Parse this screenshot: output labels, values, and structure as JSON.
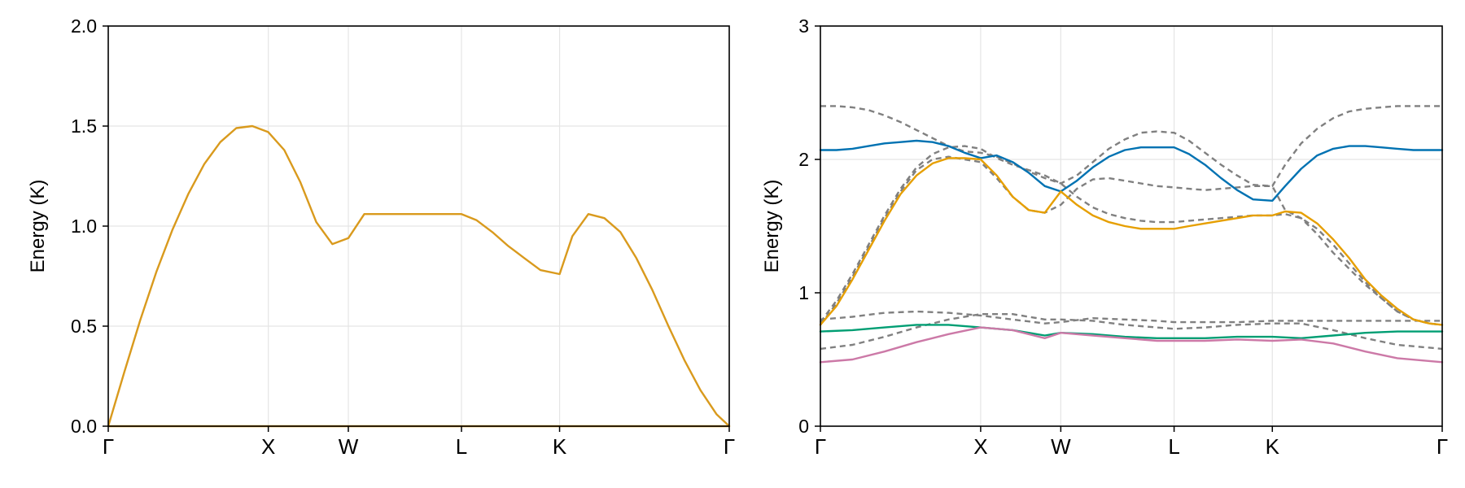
{
  "colors": {
    "gold": "#d99a1d",
    "blue": "#0072b2",
    "orange": "#e69f00",
    "green": "#009e73",
    "pink": "#cc79a7",
    "gray_dashed": "#808080",
    "grid": "#e5e5e5",
    "axis": "#000000"
  },
  "chart_data": [
    {
      "type": "line",
      "xticks": [
        "Γ",
        "X",
        "W",
        "L",
        "K",
        "Γ"
      ],
      "xtick_positions": [
        0,
        1,
        1.5,
        2.207,
        2.82,
        3.88
      ],
      "xlim": [
        0,
        3.88
      ],
      "ylabel": "Energy (K)",
      "ylim": [
        0,
        2
      ],
      "yticks": [
        "0.0",
        "0.5",
        "1.0",
        "1.5",
        "2.0"
      ],
      "ytick_values": [
        0,
        0.5,
        1.0,
        1.5,
        2.0
      ],
      "grid": true,
      "series": [
        {
          "color": "gold",
          "dashed": false,
          "x": [
            0,
            0.1,
            0.2,
            0.3,
            0.4,
            0.5,
            0.6,
            0.7,
            0.8,
            0.9,
            1.0,
            1.1,
            1.2,
            1.3,
            1.4,
            1.5,
            1.6,
            1.7,
            1.8,
            1.9,
            2.0,
            2.1,
            2.207,
            2.3,
            2.4,
            2.5,
            2.6,
            2.7,
            2.82,
            2.9,
            3.0,
            3.1,
            3.2,
            3.3,
            3.4,
            3.5,
            3.6,
            3.7,
            3.8,
            3.88
          ],
          "y": [
            0,
            0.27,
            0.53,
            0.77,
            0.98,
            1.16,
            1.31,
            1.42,
            1.49,
            1.5,
            1.47,
            1.38,
            1.22,
            1.02,
            0.91,
            0.94,
            1.06,
            1.06,
            1.06,
            1.06,
            1.06,
            1.06,
            1.06,
            1.03,
            0.97,
            0.9,
            0.84,
            0.78,
            0.76,
            0.95,
            1.06,
            1.04,
            0.97,
            0.84,
            0.68,
            0.5,
            0.33,
            0.18,
            0.06,
            0
          ]
        },
        {
          "color": "gold",
          "dashed": false,
          "x": [
            0,
            3.88
          ],
          "y": [
            0,
            0
          ]
        }
      ]
    },
    {
      "type": "line",
      "xticks": [
        "Γ",
        "X",
        "W",
        "L",
        "K",
        "Γ"
      ],
      "xtick_positions": [
        0,
        1,
        1.5,
        2.207,
        2.82,
        3.88
      ],
      "xlim": [
        0,
        3.88
      ],
      "ylabel": "Energy (K)",
      "ylim": [
        0,
        3
      ],
      "yticks": [
        "0",
        "1",
        "2",
        "3"
      ],
      "ytick_values": [
        0,
        1,
        2,
        3
      ],
      "grid": true,
      "series": [
        {
          "color": "gray_dashed",
          "dashed": true,
          "x": [
            0,
            0.1,
            0.2,
            0.3,
            0.4,
            0.5,
            0.6,
            0.7,
            0.8,
            0.9,
            1.0,
            1.1,
            1.2,
            1.3,
            1.4,
            1.5,
            1.6,
            1.7,
            1.8,
            1.9,
            2.0,
            2.1,
            2.207,
            2.3,
            2.4,
            2.5,
            2.6,
            2.7,
            2.82,
            2.9,
            3.0,
            3.1,
            3.2,
            3.3,
            3.4,
            3.5,
            3.6,
            3.7,
            3.8,
            3.88
          ],
          "y": [
            2.4,
            2.4,
            2.39,
            2.37,
            2.33,
            2.28,
            2.22,
            2.16,
            2.1,
            2.06,
            2.05,
            2.02,
            1.97,
            1.91,
            1.86,
            1.82,
            1.88,
            1.98,
            2.08,
            2.15,
            2.2,
            2.21,
            2.2,
            2.14,
            2.05,
            1.96,
            1.88,
            1.81,
            1.8,
            1.96,
            2.12,
            2.23,
            2.31,
            2.36,
            2.38,
            2.39,
            2.4,
            2.4,
            2.4,
            2.4
          ]
        },
        {
          "color": "gray_dashed",
          "dashed": true,
          "x": [
            0,
            0.1,
            0.2,
            0.3,
            0.4,
            0.5,
            0.6,
            0.7,
            0.8,
            0.9,
            1.0,
            1.1,
            1.2,
            1.3,
            1.4,
            1.5,
            1.6,
            1.7,
            1.8,
            1.9,
            2.0,
            2.1,
            2.207,
            2.3,
            2.4,
            2.5,
            2.6,
            2.7,
            2.82,
            2.9,
            3.0,
            3.1,
            3.2,
            3.3,
            3.4,
            3.5,
            3.6,
            3.7,
            3.8,
            3.88
          ],
          "y": [
            0.78,
            0.94,
            1.14,
            1.36,
            1.58,
            1.78,
            1.94,
            2.04,
            2.09,
            2.1,
            2.08,
            2.01,
            1.96,
            1.92,
            1.88,
            1.82,
            1.72,
            1.64,
            1.59,
            1.56,
            1.54,
            1.53,
            1.53,
            1.54,
            1.55,
            1.56,
            1.57,
            1.58,
            1.58,
            1.59,
            1.56,
            1.48,
            1.36,
            1.22,
            1.08,
            0.96,
            0.86,
            0.8,
            0.77,
            0.76
          ]
        },
        {
          "color": "gray_dashed",
          "dashed": true,
          "x": [
            0,
            0.1,
            0.2,
            0.3,
            0.4,
            0.5,
            0.6,
            0.7,
            0.8,
            0.9,
            1.0,
            1.1,
            1.2,
            1.3,
            1.4,
            1.5,
            1.6,
            1.7,
            1.8,
            1.9,
            2.0,
            2.1,
            2.207,
            2.3,
            2.4,
            2.5,
            2.6,
            2.7,
            2.82,
            2.9,
            3.0,
            3.1,
            3.2,
            3.3,
            3.4,
            3.5,
            3.6,
            3.7,
            3.8,
            3.88
          ],
          "y": [
            0.76,
            0.92,
            1.12,
            1.34,
            1.56,
            1.76,
            1.92,
            2.0,
            2.02,
            2.0,
            1.98,
            1.86,
            1.72,
            1.62,
            1.6,
            1.66,
            1.78,
            1.85,
            1.86,
            1.84,
            1.82,
            1.8,
            1.79,
            1.78,
            1.77,
            1.78,
            1.79,
            1.8,
            1.8,
            1.62,
            1.56,
            1.44,
            1.3,
            1.18,
            1.06,
            0.96,
            0.86,
            0.8,
            0.77,
            0.76
          ]
        },
        {
          "color": "gray_dashed",
          "dashed": true,
          "x": [
            0,
            0.2,
            0.4,
            0.6,
            0.8,
            1.0,
            1.2,
            1.4,
            1.5,
            1.7,
            1.9,
            2.1,
            2.207,
            2.4,
            2.6,
            2.82,
            3.0,
            3.2,
            3.4,
            3.6,
            3.88
          ],
          "y": [
            0.8,
            0.82,
            0.85,
            0.86,
            0.85,
            0.83,
            0.8,
            0.77,
            0.78,
            0.81,
            0.8,
            0.79,
            0.78,
            0.78,
            0.78,
            0.79,
            0.79,
            0.79,
            0.79,
            0.79,
            0.79
          ]
        },
        {
          "color": "gray_dashed",
          "dashed": true,
          "x": [
            0,
            0.2,
            0.4,
            0.6,
            0.8,
            1.0,
            1.2,
            1.4,
            1.5,
            1.7,
            1.9,
            2.1,
            2.207,
            2.4,
            2.6,
            2.82,
            3.0,
            3.2,
            3.4,
            3.6,
            3.88
          ],
          "y": [
            0.58,
            0.61,
            0.67,
            0.74,
            0.8,
            0.84,
            0.84,
            0.8,
            0.8,
            0.79,
            0.76,
            0.74,
            0.73,
            0.74,
            0.76,
            0.77,
            0.77,
            0.72,
            0.66,
            0.61,
            0.58
          ]
        },
        {
          "color": "blue",
          "dashed": false,
          "x": [
            0,
            0.1,
            0.2,
            0.3,
            0.4,
            0.5,
            0.6,
            0.7,
            0.8,
            0.9,
            1.0,
            1.1,
            1.2,
            1.3,
            1.4,
            1.5,
            1.6,
            1.7,
            1.8,
            1.9,
            2.0,
            2.1,
            2.207,
            2.3,
            2.4,
            2.5,
            2.6,
            2.7,
            2.82,
            2.9,
            3.0,
            3.1,
            3.2,
            3.3,
            3.4,
            3.5,
            3.6,
            3.7,
            3.8,
            3.88
          ],
          "y": [
            2.07,
            2.07,
            2.08,
            2.1,
            2.12,
            2.13,
            2.14,
            2.13,
            2.1,
            2.05,
            2.01,
            2.03,
            1.98,
            1.9,
            1.8,
            1.76,
            1.84,
            1.94,
            2.02,
            2.07,
            2.09,
            2.09,
            2.09,
            2.04,
            1.96,
            1.86,
            1.77,
            1.7,
            1.69,
            1.8,
            1.93,
            2.03,
            2.08,
            2.1,
            2.1,
            2.09,
            2.08,
            2.07,
            2.07,
            2.07
          ]
        },
        {
          "color": "orange",
          "dashed": false,
          "x": [
            0,
            0.1,
            0.2,
            0.3,
            0.4,
            0.5,
            0.6,
            0.7,
            0.8,
            0.9,
            1.0,
            1.1,
            1.2,
            1.3,
            1.4,
            1.5,
            1.6,
            1.7,
            1.8,
            1.9,
            2.0,
            2.1,
            2.207,
            2.3,
            2.4,
            2.5,
            2.6,
            2.7,
            2.82,
            2.9,
            3.0,
            3.1,
            3.2,
            3.3,
            3.4,
            3.5,
            3.6,
            3.7,
            3.8,
            3.88
          ],
          "y": [
            0.76,
            0.9,
            1.1,
            1.32,
            1.54,
            1.74,
            1.88,
            1.97,
            2.01,
            2.01,
            2.0,
            1.88,
            1.72,
            1.62,
            1.6,
            1.76,
            1.66,
            1.58,
            1.53,
            1.5,
            1.48,
            1.48,
            1.48,
            1.5,
            1.52,
            1.54,
            1.56,
            1.58,
            1.58,
            1.61,
            1.6,
            1.52,
            1.4,
            1.26,
            1.1,
            0.98,
            0.88,
            0.8,
            0.77,
            0.76
          ]
        },
        {
          "color": "green",
          "dashed": false,
          "x": [
            0,
            0.2,
            0.4,
            0.6,
            0.8,
            1.0,
            1.2,
            1.4,
            1.5,
            1.7,
            1.9,
            2.1,
            2.207,
            2.4,
            2.6,
            2.82,
            3.0,
            3.2,
            3.4,
            3.6,
            3.88
          ],
          "y": [
            0.71,
            0.72,
            0.74,
            0.76,
            0.76,
            0.74,
            0.72,
            0.68,
            0.7,
            0.69,
            0.67,
            0.66,
            0.66,
            0.66,
            0.67,
            0.67,
            0.66,
            0.68,
            0.7,
            0.71,
            0.71
          ]
        },
        {
          "color": "pink",
          "dashed": false,
          "x": [
            0,
            0.2,
            0.4,
            0.6,
            0.8,
            1.0,
            1.2,
            1.4,
            1.5,
            1.7,
            1.9,
            2.1,
            2.207,
            2.4,
            2.6,
            2.82,
            3.0,
            3.2,
            3.4,
            3.6,
            3.88
          ],
          "y": [
            0.48,
            0.5,
            0.56,
            0.63,
            0.69,
            0.74,
            0.72,
            0.66,
            0.7,
            0.68,
            0.66,
            0.64,
            0.64,
            0.64,
            0.65,
            0.64,
            0.65,
            0.62,
            0.56,
            0.51,
            0.48
          ]
        }
      ]
    }
  ]
}
